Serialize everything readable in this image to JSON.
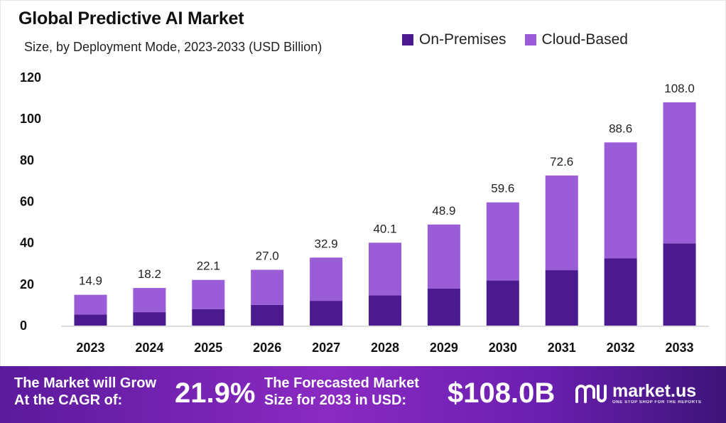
{
  "header": {
    "title": "Global Predictive AI Market",
    "subtitle": "Size, by Deployment Mode, 2023-2033 (USD Billion)"
  },
  "legend": {
    "items": [
      {
        "label": "On-Premises",
        "color": "#4b1a8f"
      },
      {
        "label": "Cloud-Based",
        "color": "#9b5cd8"
      }
    ]
  },
  "chart_data": {
    "type": "bar",
    "stacked": true,
    "title": "Global Predictive AI Market",
    "subtitle": "Size, by Deployment Mode, 2023-2033 (USD Billion)",
    "categories": [
      "2023",
      "2024",
      "2025",
      "2026",
      "2027",
      "2028",
      "2029",
      "2030",
      "2031",
      "2032",
      "2033"
    ],
    "series": [
      {
        "name": "On-Premises",
        "color": "#4b1a8f",
        "values": [
          5.4,
          6.5,
          8.0,
          10.0,
          12.0,
          14.6,
          17.9,
          21.8,
          26.8,
          32.6,
          39.8
        ]
      },
      {
        "name": "Cloud-Based",
        "color": "#9b5cd8",
        "values": [
          9.5,
          11.7,
          14.1,
          17.0,
          20.9,
          25.5,
          31.0,
          37.8,
          45.8,
          56.0,
          68.2
        ]
      }
    ],
    "totals": [
      "14.9",
      "18.2",
      "22.1",
      "27.0",
      "32.9",
      "40.1",
      "48.9",
      "59.6",
      "72.6",
      "88.6",
      "108.0"
    ],
    "yticks": [
      0,
      20,
      40,
      60,
      80,
      100,
      120
    ],
    "ylim": [
      0,
      120
    ],
    "grid": false,
    "legend_position": "top-right"
  },
  "footer": {
    "cagr_label_line1": "The Market will Grow",
    "cagr_label_line2": "At the CAGR of:",
    "cagr_value": "21.9%",
    "forecast_label_line1": "The Forecasted Market",
    "forecast_label_line2": "Size for 2033 in USD:",
    "forecast_value": "$108.0B",
    "brand_name": "market.us",
    "brand_tagline": "ONE STOP SHOP FOR THE REPORTS"
  }
}
